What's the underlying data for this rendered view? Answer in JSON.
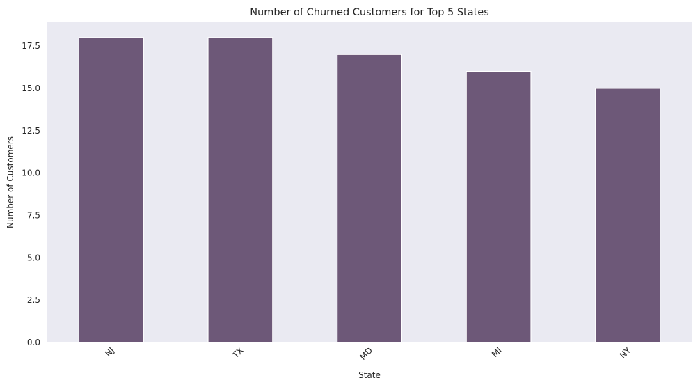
{
  "chart_data": {
    "type": "bar",
    "title": "Number of Churned Customers for Top 5 States",
    "xlabel": "State",
    "ylabel": "Number of Customers",
    "categories": [
      "NJ",
      "TX",
      "MD",
      "MI",
      "NY"
    ],
    "values": [
      18,
      18,
      17,
      16,
      15
    ],
    "ylim": [
      0,
      18.9
    ],
    "yticks": [
      0.0,
      2.5,
      5.0,
      7.5,
      10.0,
      12.5,
      15.0,
      17.5
    ],
    "ytick_labels": [
      "0.0",
      "2.5",
      "5.0",
      "7.5",
      "10.0",
      "12.5",
      "15.0",
      "17.5"
    ],
    "xtick_rotation": 45,
    "grid": false,
    "legend": false,
    "colors": {
      "bar": "#6d5878",
      "background": "#eaeaf2",
      "text": "#262626"
    }
  }
}
